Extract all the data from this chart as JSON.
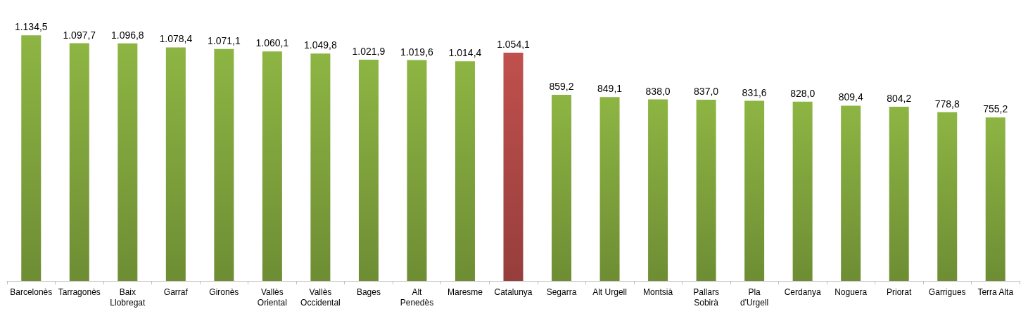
{
  "chart_data": {
    "type": "bar",
    "categories": [
      "Barcelonès",
      "Tarragonès",
      "Baix Llobregat",
      "Garraf",
      "Gironès",
      "Vallès Oriental",
      "Vallès Occidental",
      "Bages",
      "Alt Penedès",
      "Maresme",
      "Catalunya",
      "Segarra",
      "Alt Urgell",
      "Montsià",
      "Pallars Sobirà",
      "Pla d'Urgell",
      "Cerdanya",
      "Noguera",
      "Priorat",
      "Garrigues",
      "Terra Alta"
    ],
    "values": [
      1134.5,
      1097.7,
      1096.8,
      1078.4,
      1071.1,
      1060.1,
      1049.8,
      1021.9,
      1019.6,
      1014.4,
      1054.1,
      859.2,
      849.1,
      838.0,
      837.0,
      831.6,
      828.0,
      809.4,
      804.2,
      778.8,
      755.2
    ],
    "value_labels": [
      "1.134,5",
      "1.097,7",
      "1.096,8",
      "1.078,4",
      "1.071,1",
      "1.060,1",
      "1.049,8",
      "1.021,9",
      "1.019,6",
      "1.014,4",
      "1.054,1",
      "859,2",
      "849,1",
      "838,0",
      "837,0",
      "831,6",
      "828,0",
      "809,4",
      "804,2",
      "778,8",
      "755,2"
    ],
    "colors": [
      "#8db543",
      "#8db543",
      "#8db543",
      "#8db543",
      "#8db543",
      "#8db543",
      "#8db543",
      "#8db543",
      "#8db543",
      "#8db543",
      "#c0504d",
      "#8db543",
      "#8db543",
      "#8db543",
      "#8db543",
      "#8db543",
      "#8db543",
      "#8db543",
      "#8db543",
      "#8db543",
      "#8db543"
    ],
    "tick_labels": "x",
    "grid": false
  }
}
